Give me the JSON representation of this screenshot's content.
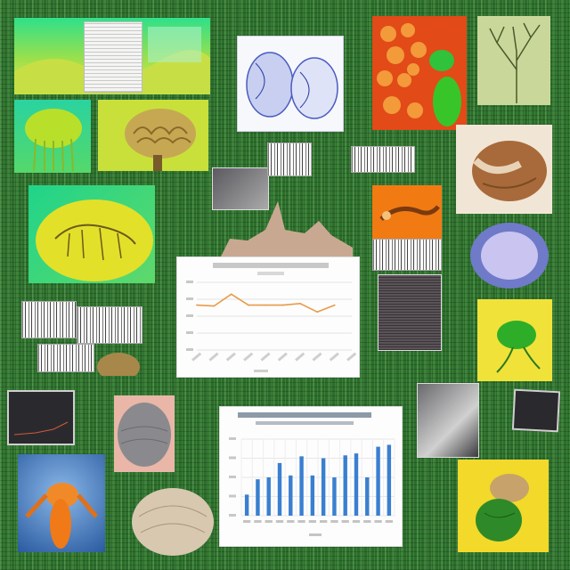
{
  "board": {
    "background": "#2b6e2a",
    "tiles": [
      {
        "name": "green-gradient-banner",
        "kind": "image",
        "colors": [
          "#24d47a",
          "#c7e84f"
        ]
      },
      {
        "name": "jellyfish-image",
        "kind": "image",
        "colors": [
          "#1fcf8a",
          "#a6d92a"
        ]
      },
      {
        "name": "brain-coral-image",
        "kind": "image",
        "colors": [
          "#c9e03a",
          "#a68a3c"
        ]
      },
      {
        "name": "blue-cell-sketch-image",
        "kind": "image",
        "colors": [
          "#ffffff",
          "#6d7fd0"
        ]
      },
      {
        "name": "red-cells-image",
        "kind": "image",
        "colors": [
          "#e04a1a",
          "#f29a3a",
          "#35c23a"
        ]
      },
      {
        "name": "tree-sketch-image",
        "kind": "image",
        "colors": [
          "#c8d89a",
          "#5b6b3a"
        ]
      },
      {
        "name": "skeleton-fossil-image",
        "kind": "image",
        "colors": [
          "#1fd48a",
          "#e3e02a"
        ]
      },
      {
        "name": "orange-lizard-image",
        "kind": "image",
        "colors": [
          "#f27a12",
          "#8a4a1a"
        ]
      },
      {
        "name": "brown-organ-image",
        "kind": "image",
        "colors": [
          "#f2e7d8",
          "#a86a3a"
        ]
      },
      {
        "name": "violet-cell-image",
        "kind": "image",
        "colors": [
          "#7f8ad8",
          "#c9c4f0"
        ]
      },
      {
        "name": "green-insect-image",
        "kind": "image",
        "colors": [
          "#f2e233",
          "#2eae28"
        ]
      },
      {
        "name": "orange-insect-image",
        "kind": "image",
        "colors": [
          "#3f7ac8",
          "#f08a28"
        ]
      },
      {
        "name": "yellow-insect-image",
        "kind": "image",
        "colors": [
          "#f2d92a",
          "#2e8a28"
        ]
      }
    ]
  },
  "chart_data": [
    {
      "type": "line",
      "x": [
        1,
        2,
        3,
        4,
        5,
        6,
        7,
        8,
        9,
        10
      ],
      "values": [
        53,
        52,
        66,
        53,
        53,
        53,
        55,
        45,
        53,
        null
      ],
      "ylim": [
        0,
        80
      ],
      "grid": true,
      "color": "#e89a4a"
    },
    {
      "type": "bar",
      "values": [
        22,
        38,
        40,
        55,
        42,
        62,
        42,
        60,
        40,
        63,
        65,
        40,
        72,
        74
      ],
      "ylim": [
        0,
        80
      ],
      "grid": true,
      "color": "#3a7fd0"
    }
  ]
}
